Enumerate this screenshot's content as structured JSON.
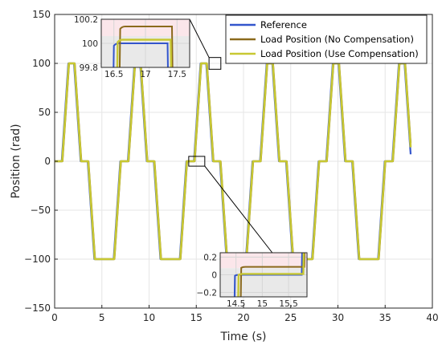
{
  "chart_data": {
    "type": "line",
    "xlabel": "Time (s)",
    "ylabel": "Position (rad)",
    "xlim": [
      0,
      40
    ],
    "ylim": [
      -150,
      150
    ],
    "xticks": [
      "0",
      "5",
      "10",
      "15",
      "20",
      "25",
      "30",
      "35",
      "40"
    ],
    "yticks": [
      "150",
      "100",
      "50",
      "0",
      "−50",
      "−100",
      "−150"
    ],
    "grid": true,
    "legend_position": "top-right",
    "series": [
      {
        "name": "Reference",
        "color": "#3355cc",
        "lag": 0.0
      },
      {
        "name": "Load Position (No Compensation)",
        "color": "#8b6a1c",
        "lag": 0.08
      },
      {
        "name": "Load Position (Use Compensation)",
        "color": "#c8c832",
        "lag": 0.05
      }
    ],
    "signal": {
      "description": "periodic trapezoid: 0 -> +100 -> 0 -> -100 -> 0",
      "period": 7.0,
      "keypoints_t": [
        0,
        0.35,
        1.05,
        1.65,
        2.35,
        3.1,
        3.8,
        4.55,
        5.25,
        5.85,
        6.55,
        7.0
      ],
      "keypoints_y": [
        0,
        0,
        100,
        100,
        0,
        0,
        -100,
        -100,
        -100,
        -100,
        0,
        0
      ],
      "t_start": 0.0,
      "t_end": 37.7,
      "start_offset": 0.4
    },
    "insets": [
      {
        "xlim": [
          16.3,
          17.7
        ],
        "ylim": [
          99.8,
          100.2
        ],
        "xticks": [
          "16.5",
          "17",
          "17.5"
        ],
        "xtick_values": [
          16.5,
          17,
          17.5
        ],
        "yticks": [
          "100.2",
          "100",
          "99.8"
        ],
        "ytick_values": [
          100.2,
          100,
          99.8
        ],
        "source_region": {
          "t": [
            16.35,
            17.6
          ],
          "y": [
            94,
            106
          ]
        }
      },
      {
        "xlim": [
          14.2,
          15.85
        ],
        "ylim": [
          -0.25,
          0.25
        ],
        "xticks": [
          "14.5",
          "15",
          "15.5"
        ],
        "xtick_values": [
          14.5,
          15,
          15.5
        ],
        "yticks": [
          "0.2",
          "0",
          "−0.2"
        ],
        "ytick_values": [
          0.2,
          0,
          -0.2
        ],
        "source_region": {
          "t": [
            14.2,
            15.9
          ],
          "y": [
            -5,
            5
          ]
        }
      }
    ]
  }
}
